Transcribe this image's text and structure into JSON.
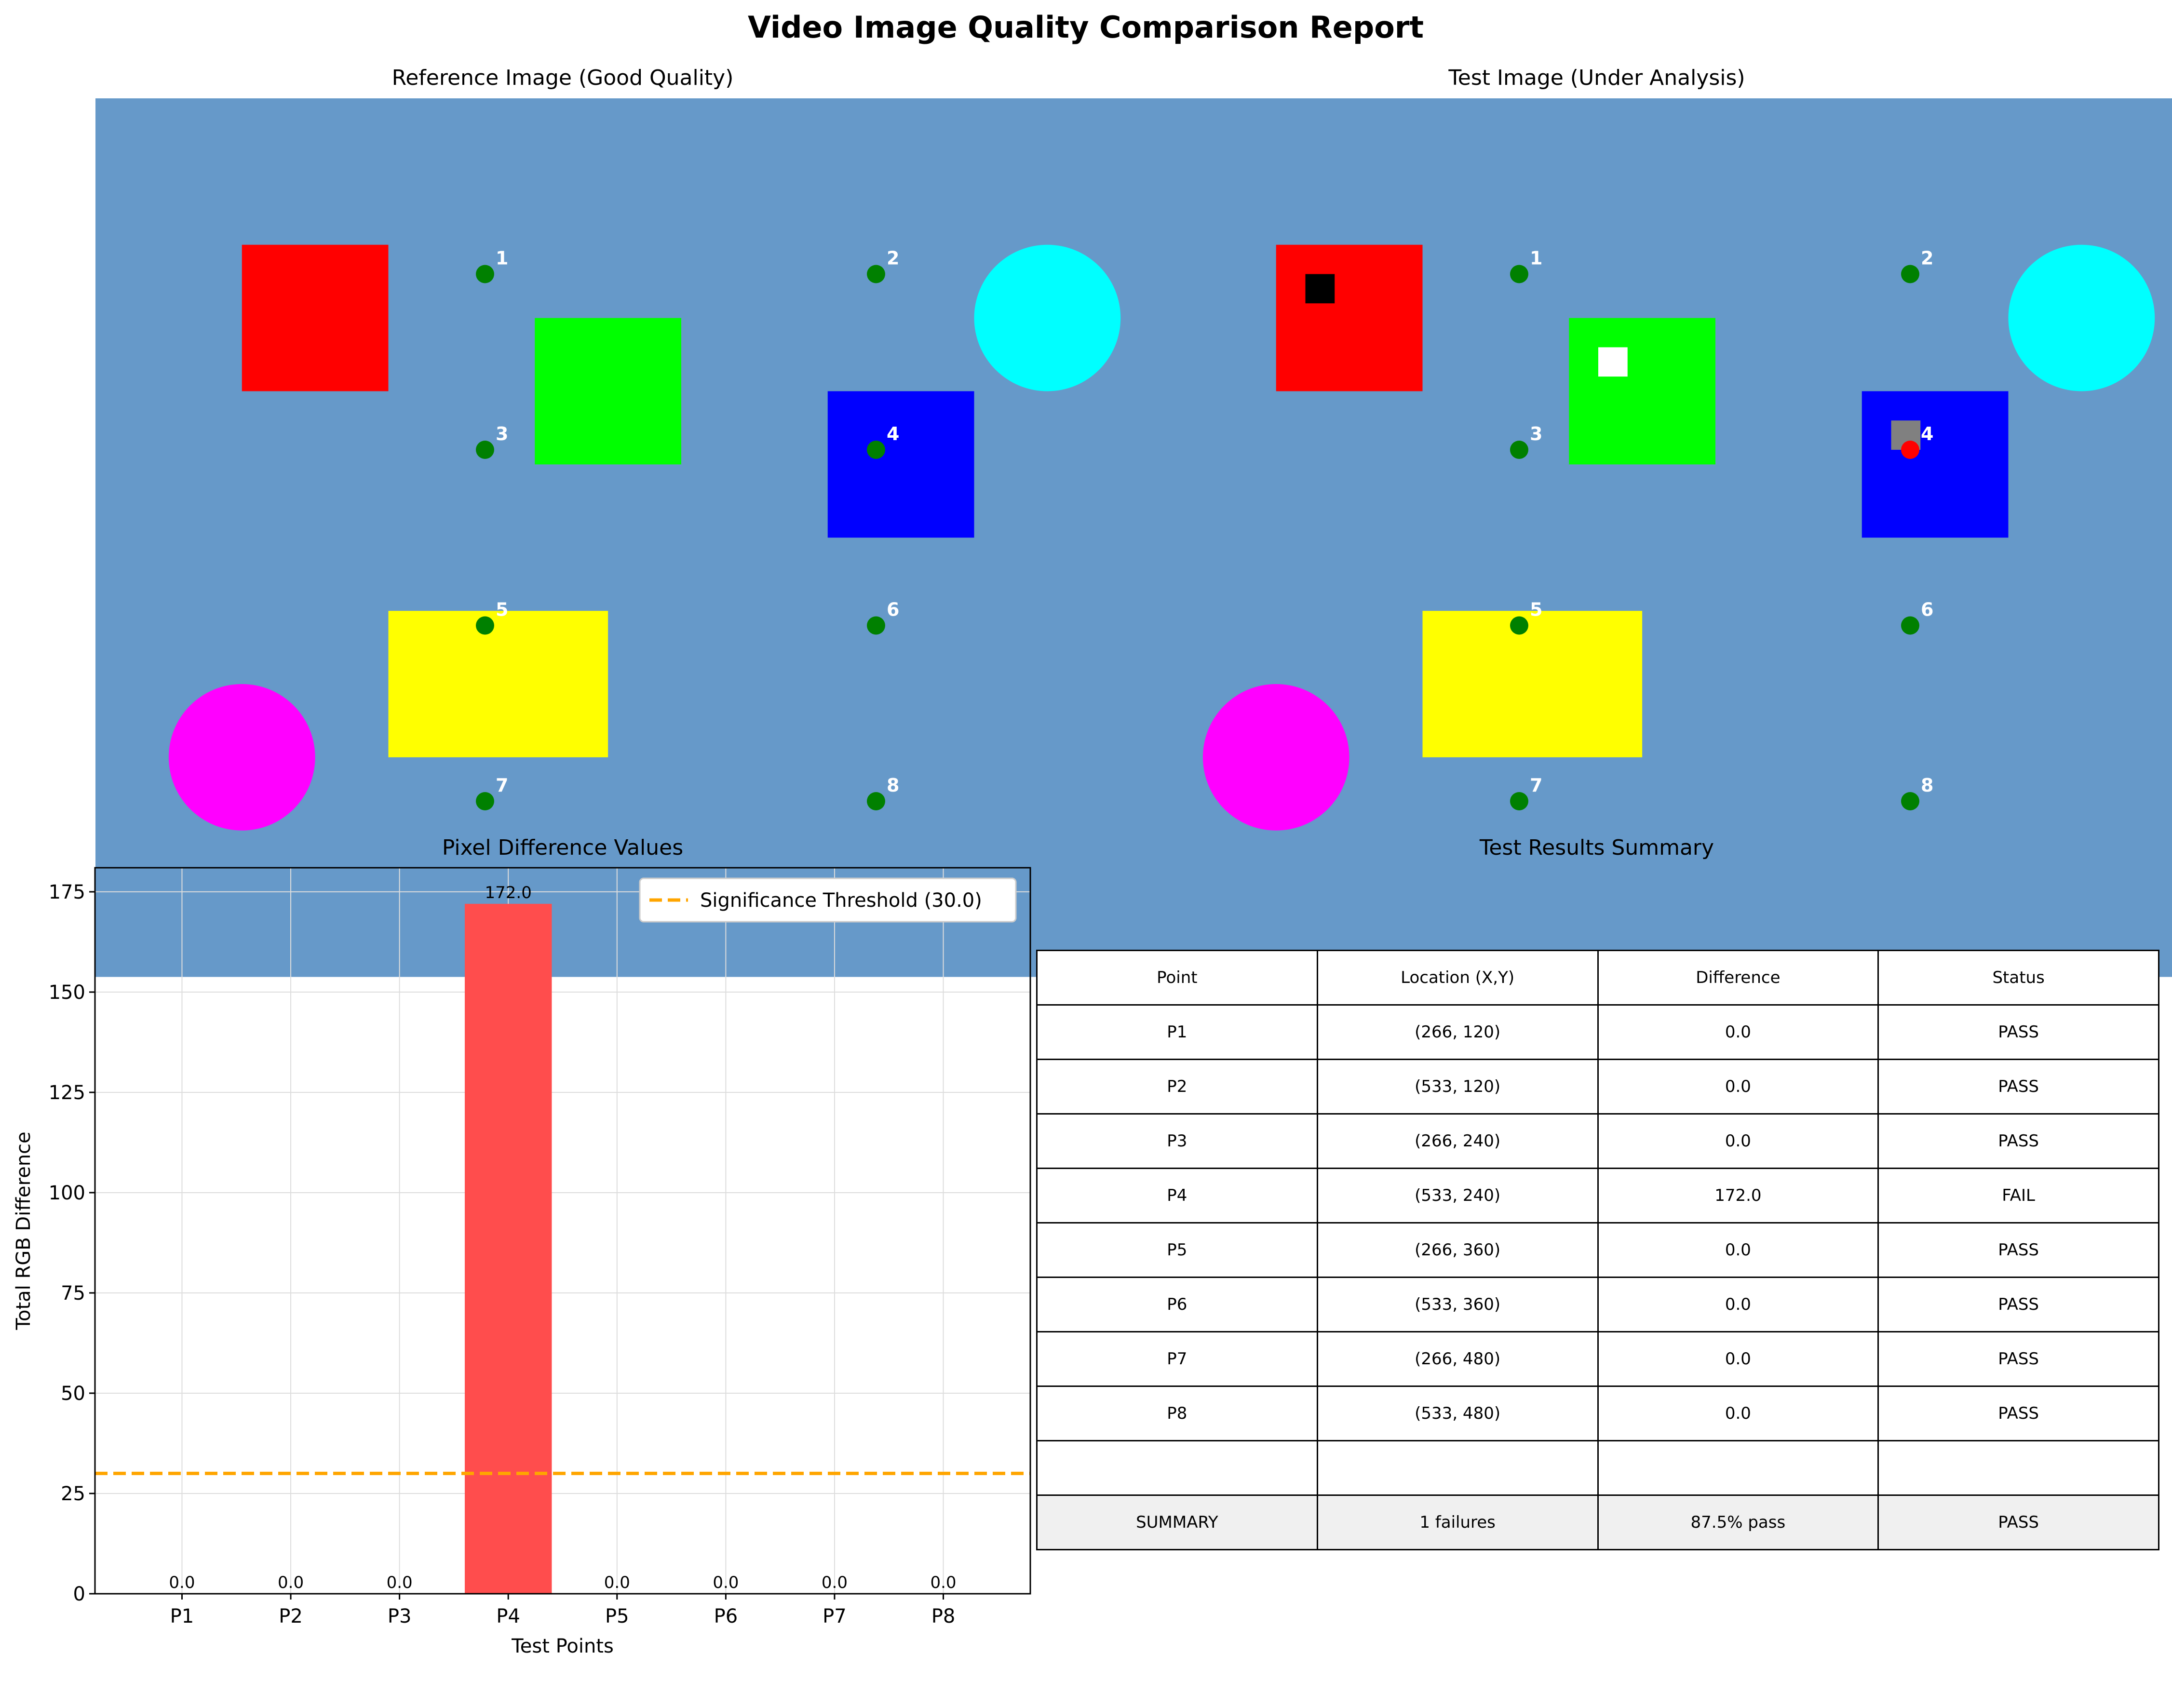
{
  "report_title": "Video Image Quality Comparison Report",
  "reference_title": "Reference Image (Good Quality)",
  "test_title": "Test Image (Under Analysis)",
  "table_title": "Test Results Summary",
  "colors": {
    "background": "#6699c9",
    "red": "#ff0000",
    "green": "#00ff00",
    "blue": "#0000ff",
    "yellow": "#ffff00",
    "cyan": "#00ffff",
    "magenta": "#ff00ff",
    "marker": "#008000",
    "fail_marker": "#ff0000",
    "bar_fail": "#ff4d4d",
    "threshold": "#ffa500",
    "grid": "#dddddd"
  },
  "test_points": [
    {
      "label": "1",
      "x": 266,
      "y": 120
    },
    {
      "label": "2",
      "x": 533,
      "y": 120
    },
    {
      "label": "3",
      "x": 266,
      "y": 240
    },
    {
      "label": "4",
      "x": 533,
      "y": 240
    },
    {
      "label": "5",
      "x": 266,
      "y": 360
    },
    {
      "label": "6",
      "x": 533,
      "y": 360
    },
    {
      "label": "7",
      "x": 266,
      "y": 480
    },
    {
      "label": "8",
      "x": 533,
      "y": 480
    }
  ],
  "chart_data": {
    "type": "bar",
    "title": "Pixel Difference Values",
    "xlabel": "Test Points",
    "ylabel": "Total RGB Difference",
    "categories": [
      "P1",
      "P2",
      "P3",
      "P4",
      "P5",
      "P6",
      "P7",
      "P8"
    ],
    "values": [
      0.0,
      0.0,
      0.0,
      172.0,
      0.0,
      0.0,
      0.0,
      0.0
    ],
    "value_labels": [
      "0.0",
      "0.0",
      "0.0",
      "172.0",
      "0.0",
      "0.0",
      "0.0",
      "0.0"
    ],
    "threshold": 30.0,
    "threshold_label": "Significance Threshold (30.0)",
    "ylim": [
      0,
      181
    ],
    "yticks": [
      0,
      25,
      50,
      75,
      100,
      125,
      150,
      175
    ],
    "grid": true,
    "legend_position": "top-right"
  },
  "table": {
    "header": [
      "Point",
      "Location (X,Y)",
      "Difference",
      "Status"
    ],
    "rows": [
      [
        "P1",
        "(266, 120)",
        "0.0",
        "PASS"
      ],
      [
        "P2",
        "(533, 120)",
        "0.0",
        "PASS"
      ],
      [
        "P3",
        "(266, 240)",
        "0.0",
        "PASS"
      ],
      [
        "P4",
        "(533, 240)",
        "172.0",
        "FAIL"
      ],
      [
        "P5",
        "(266, 360)",
        "0.0",
        "PASS"
      ],
      [
        "P6",
        "(533, 360)",
        "0.0",
        "PASS"
      ],
      [
        "P7",
        "(266, 480)",
        "0.0",
        "PASS"
      ],
      [
        "P8",
        "(533, 480)",
        "0.0",
        "PASS"
      ],
      [
        "",
        "",
        "",
        ""
      ]
    ],
    "summary": [
      "SUMMARY",
      "1 failures",
      "87.5% pass",
      "PASS"
    ]
  }
}
